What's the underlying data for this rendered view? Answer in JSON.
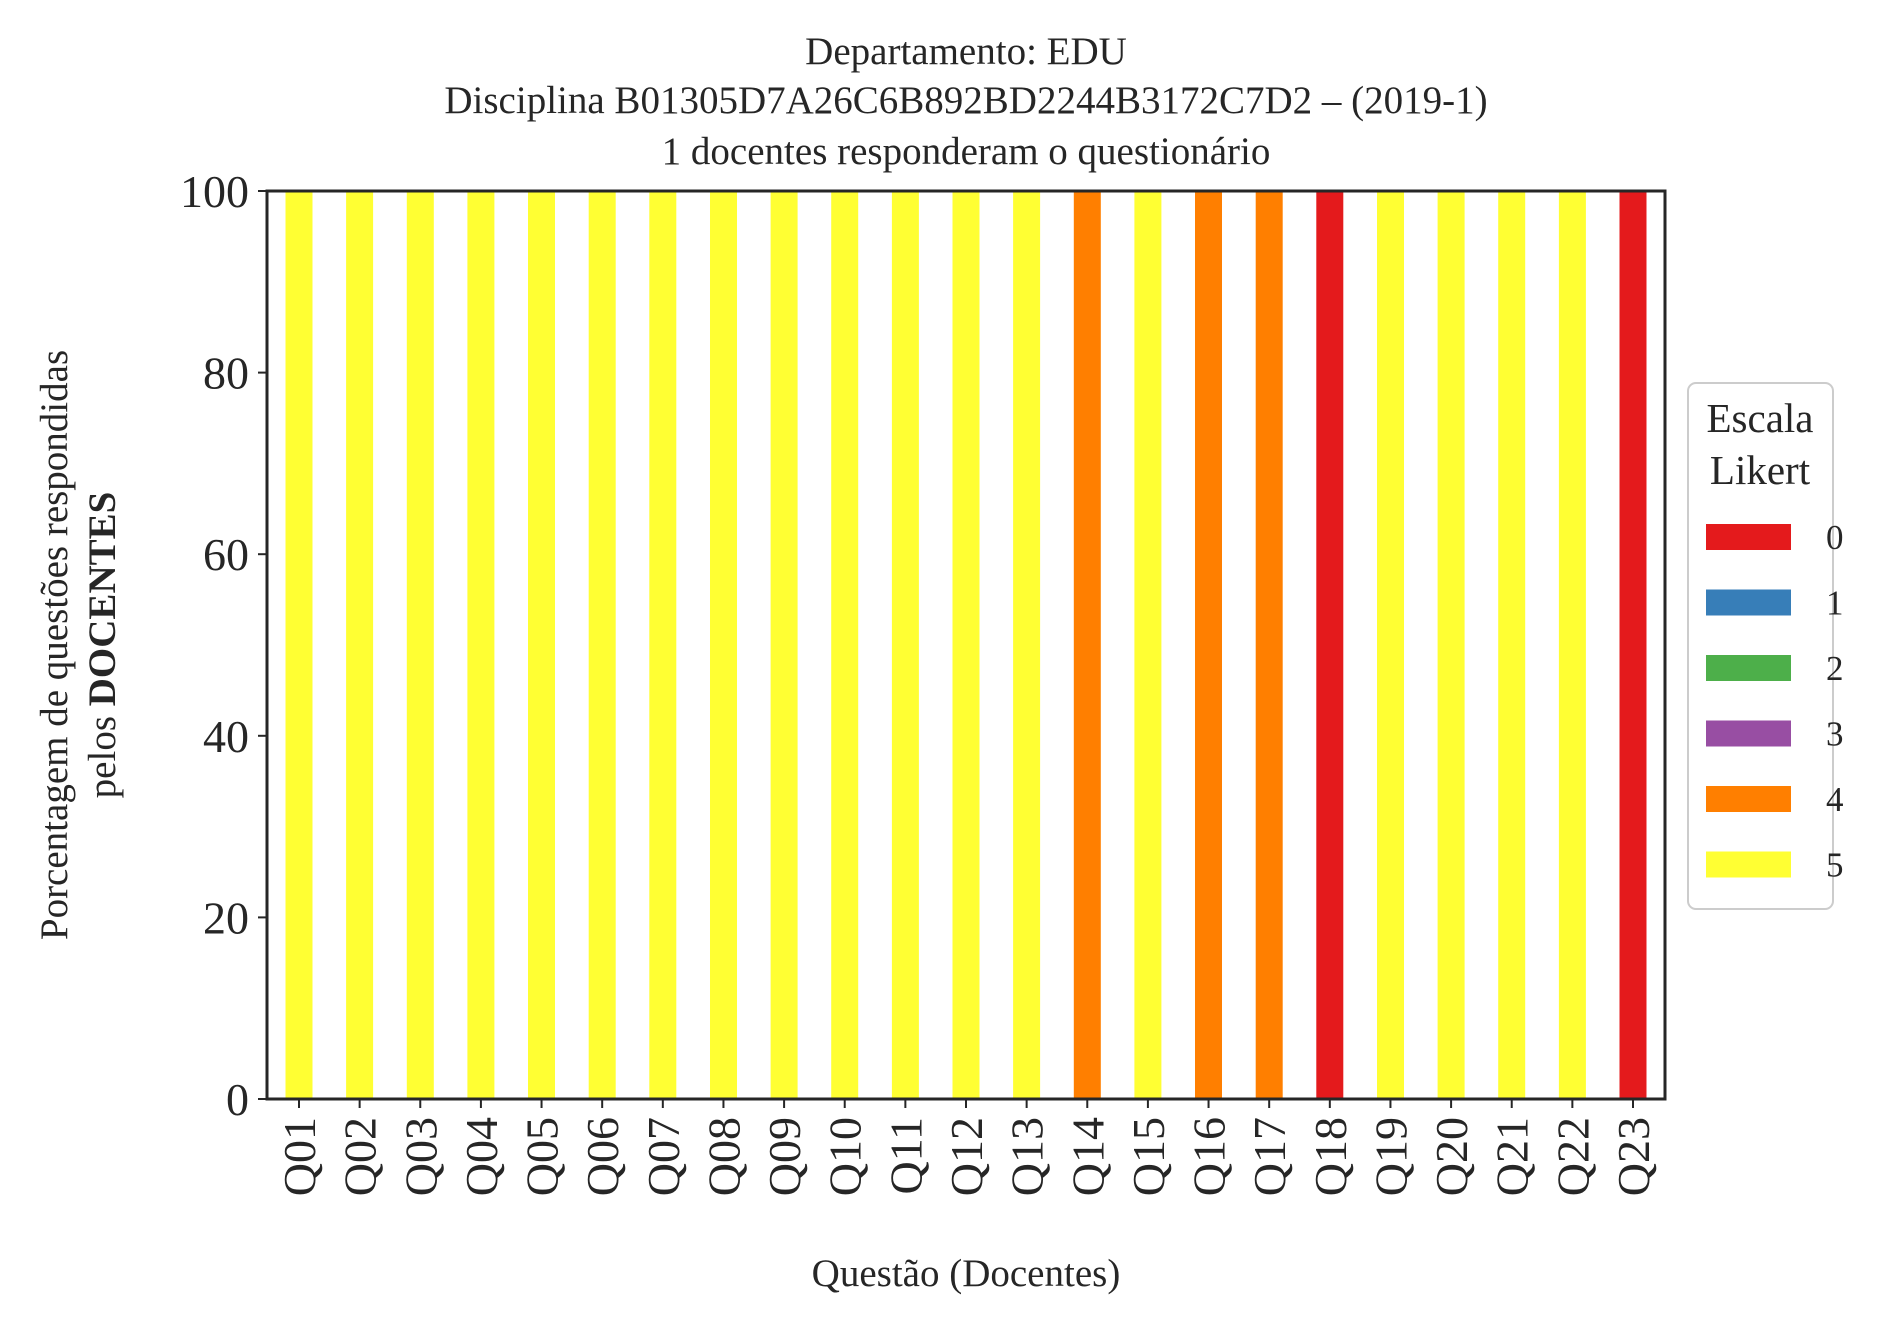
{
  "chart_data": {
    "type": "bar",
    "stacked": true,
    "title_lines": [
      "Departamento: EDU",
      "Disciplina B01305D7A26C6B892BD2244B3172C7D2 – (2019-1)",
      "1 docentes responderam o questionário"
    ],
    "xlabel": "Questão (Docentes)",
    "ylabel_line1": "Porcentagem de questões respondidas",
    "ylabel_line2_prefix": "pelos",
    "ylabel_line2_bold": "DOCENTES",
    "ylim": [
      0,
      100
    ],
    "yticks": [
      "0",
      "20",
      "40",
      "60",
      "80",
      "100"
    ],
    "ytick_values": [
      0,
      20,
      40,
      60,
      80,
      100
    ],
    "grid": false,
    "legend": {
      "title_line1": "Escala",
      "title_line2": "Likert",
      "placement": "right",
      "entries": [
        "0",
        "1",
        "2",
        "3",
        "4",
        "5"
      ]
    },
    "colors": {
      "0": "#e41a1c",
      "1": "#377eb8",
      "2": "#4daf4a",
      "3": "#984ea3",
      "4": "#ff7f00",
      "5": "#ffff33"
    },
    "categories": [
      "Q01",
      "Q02",
      "Q03",
      "Q04",
      "Q05",
      "Q06",
      "Q07",
      "Q08",
      "Q09",
      "Q10",
      "Q11",
      "Q12",
      "Q13",
      "Q14",
      "Q15",
      "Q16",
      "Q17",
      "Q18",
      "Q19",
      "Q20",
      "Q21",
      "Q22",
      "Q23"
    ],
    "series": [
      {
        "name": "0",
        "values": [
          0,
          0,
          0,
          0,
          0,
          0,
          0,
          0,
          0,
          0,
          0,
          0,
          0,
          0,
          0,
          0,
          0,
          100,
          0,
          0,
          0,
          0,
          100
        ]
      },
      {
        "name": "1",
        "values": [
          0,
          0,
          0,
          0,
          0,
          0,
          0,
          0,
          0,
          0,
          0,
          0,
          0,
          0,
          0,
          0,
          0,
          0,
          0,
          0,
          0,
          0,
          0
        ]
      },
      {
        "name": "2",
        "values": [
          0,
          0,
          0,
          0,
          0,
          0,
          0,
          0,
          0,
          0,
          0,
          0,
          0,
          0,
          0,
          0,
          0,
          0,
          0,
          0,
          0,
          0,
          0
        ]
      },
      {
        "name": "3",
        "values": [
          0,
          0,
          0,
          0,
          0,
          0,
          0,
          0,
          0,
          0,
          0,
          0,
          0,
          0,
          0,
          0,
          0,
          0,
          0,
          0,
          0,
          0,
          0
        ]
      },
      {
        "name": "4",
        "values": [
          0,
          0,
          0,
          0,
          0,
          0,
          0,
          0,
          0,
          0,
          0,
          0,
          0,
          100,
          0,
          100,
          100,
          0,
          0,
          0,
          0,
          0,
          0
        ]
      },
      {
        "name": "5",
        "values": [
          100,
          100,
          100,
          100,
          100,
          100,
          100,
          100,
          100,
          100,
          100,
          100,
          100,
          0,
          100,
          0,
          0,
          0,
          100,
          100,
          100,
          100,
          0
        ]
      }
    ]
  }
}
